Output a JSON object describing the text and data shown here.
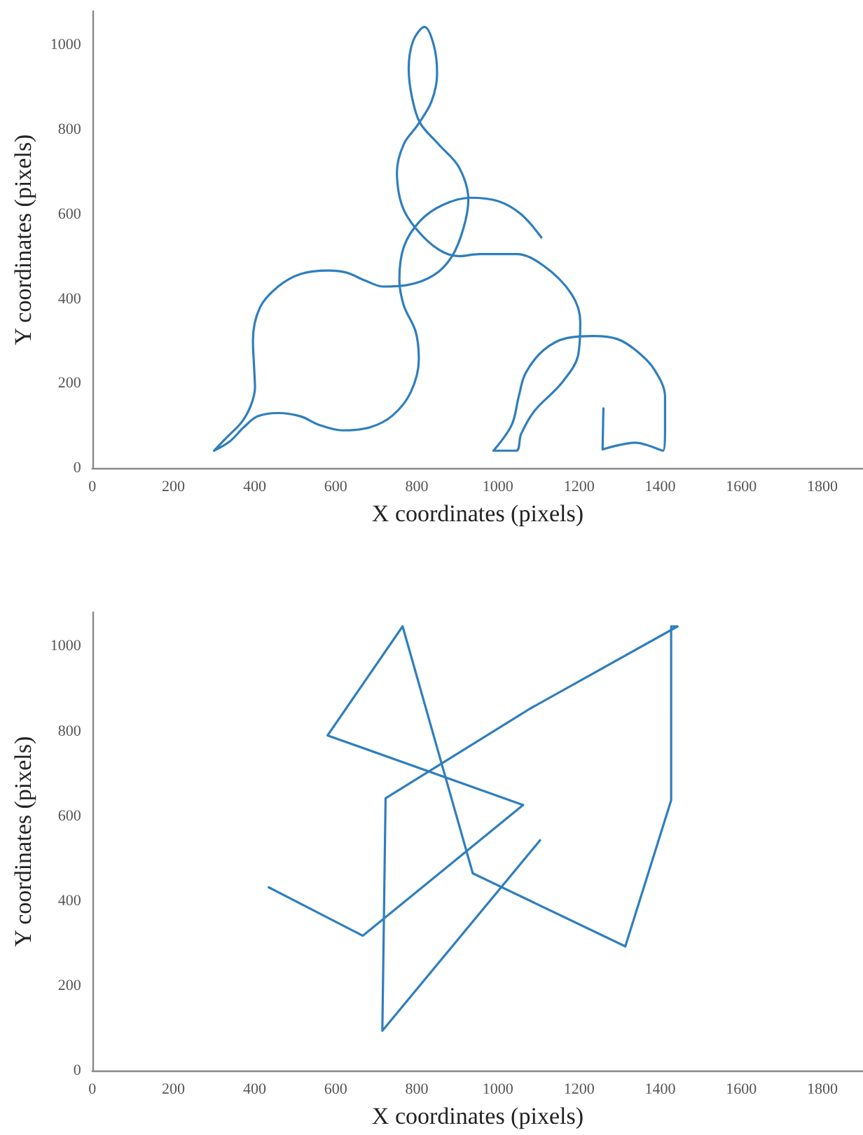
{
  "chart_data": [
    {
      "type": "line",
      "xlabel": "X coordinates (pixels)",
      "ylabel": "Y coordinates (pixels)",
      "xlim": [
        0,
        1900
      ],
      "ylim": [
        0,
        1080
      ],
      "xticks": [
        0,
        200,
        400,
        600,
        800,
        1000,
        1200,
        1400,
        1600,
        1800
      ],
      "yticks": [
        0,
        200,
        400,
        600,
        800,
        1000
      ],
      "marker": "none",
      "line_style": "solid",
      "series": [
        {
          "color": "#2f7ebd",
          "x": [
            1260,
            1258,
            1339,
            1407,
            1412,
            1412,
            1384,
            1339,
            1294,
            1237,
            1169,
            1113,
            1068,
            1051,
            1034,
            989,
            1045,
            1057,
            1090,
            1158,
            1198,
            1203,
            1181,
            1113,
            1045,
            955,
            904,
            853,
            797,
            763,
            751,
            768,
            802,
            836,
            850,
            842,
            819,
            791,
            780,
            788,
            808,
            853,
            904,
            927,
            915,
            887,
            842,
            774,
            718,
            673,
            627,
            582,
            514,
            458,
            413,
            396,
            399,
            401,
            390,
            367,
            333,
            300,
            339,
            373,
            407,
            458,
            514,
            559,
            616,
            684,
            740,
            785,
            805,
            797,
            768,
            757,
            768,
            808,
            864,
            932,
            1000,
            1057,
            1107
          ],
          "values": [
            141,
            44,
            60,
            41,
            102,
            168,
            235,
            279,
            305,
            312,
            307,
            279,
            224,
            168,
            102,
            41,
            41,
            80,
            135,
            202,
            268,
            346,
            412,
            478,
            506,
            506,
            501,
            517,
            567,
            622,
            700,
            766,
            811,
            866,
            932,
            999,
            1043,
            1010,
            944,
            877,
            816,
            766,
            711,
            634,
            567,
            501,
            456,
            432,
            429,
            443,
            462,
            467,
            459,
            429,
            379,
            301,
            235,
            190,
            146,
            107,
            74,
            41,
            63,
            96,
            122,
            130,
            122,
            102,
            89,
            96,
            124,
            179,
            257,
            323,
            384,
            445,
            523,
            584,
            622,
            639,
            631,
            600,
            545
          ]
        }
      ]
    },
    {
      "type": "line",
      "xlabel": "X coordinates (pixels)",
      "ylabel": "Y coordinates (pixels)",
      "xlim": [
        0,
        1900
      ],
      "ylim": [
        0,
        1080
      ],
      "xticks": [
        0,
        200,
        400,
        600,
        800,
        1000,
        1200,
        1400,
        1600,
        1800
      ],
      "yticks": [
        0,
        200,
        400,
        600,
        800,
        1000
      ],
      "marker": "none",
      "line_style": "solid",
      "series": [
        {
          "color": "#2f7ebd",
          "x": [
            435,
            667,
            1062,
            580,
            765,
            938,
            1314,
            1427,
            1427,
            1443,
            1079,
            723,
            715,
            1104
          ],
          "values": [
            432,
            318,
            626,
            790,
            1047,
            465,
            293,
            637,
            1047,
            1047,
            853,
            642,
            94,
            543
          ]
        }
      ]
    }
  ]
}
